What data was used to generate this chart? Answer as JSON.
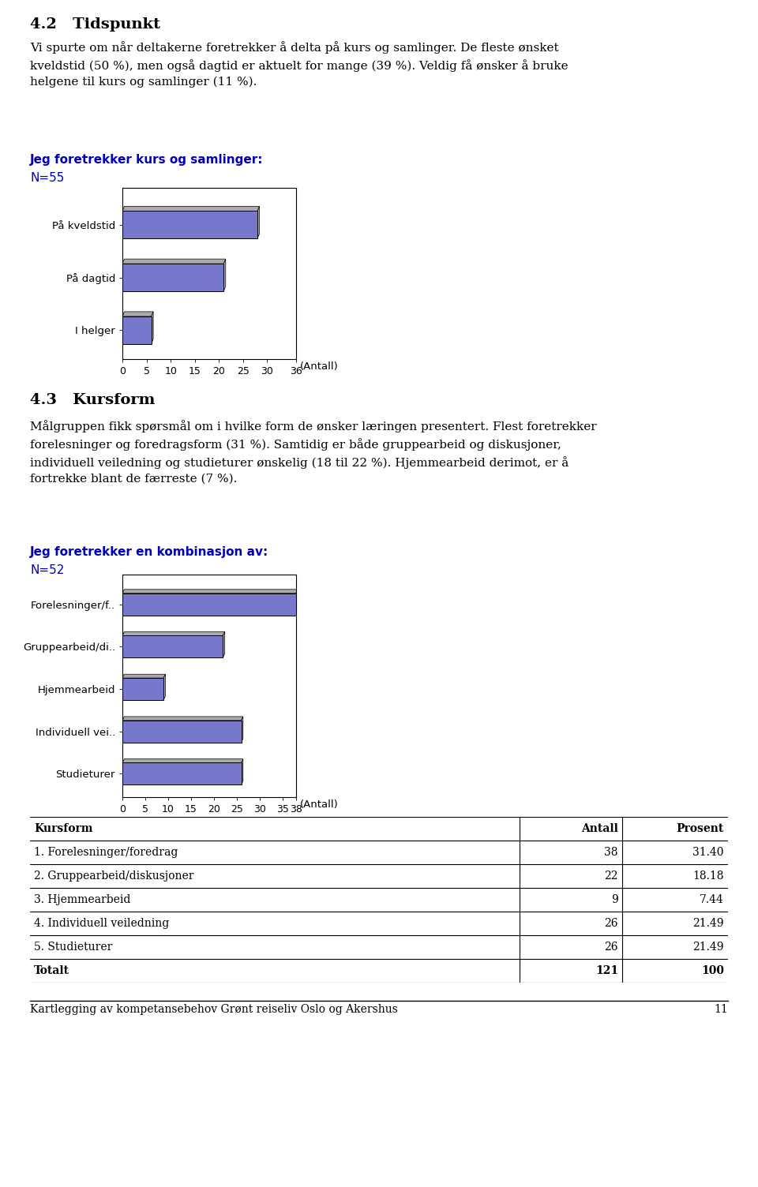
{
  "page_title_1": "4.2   Tidspunkt",
  "page_text_1": "Vi spurte om når deltakerne foretrekker å delta på kurs og samlinger. De fleste ønsket\nkveldstid (50 %), men også dagtid er aktuelt for mange (39 %). Veldig få ønsker å bruke\nhelgene til kurs og samlinger (11 %).",
  "chart1_title": "Jeg foretrekker kurs og samlinger:",
  "chart1_n": "N=55",
  "chart1_categories": [
    "På kveldstid",
    "På dagtid",
    "I helger"
  ],
  "chart1_values": [
    28,
    21,
    6
  ],
  "chart1_xlim": [
    0,
    36
  ],
  "chart1_xticks": [
    0,
    5,
    10,
    15,
    20,
    25,
    30,
    36
  ],
  "chart1_xlabel": "(Antall)",
  "section_title": "4.3   Kursform",
  "section_text": "Målgruppen fikk spørsmål om i hvilke form de ønsker læringen presentert. Flest foretrekker\nforelesninger og foredragsform (31 %). Samtidig er både gruppearbeid og diskusjoner,\nindividuell veiledning og studieturer ønskelig (18 til 22 %). Hjemmearbeid derimot, er å\nfortrekke blant de færreste (7 %).",
  "chart2_title": "Jeg foretrekker en kombinasjon av:",
  "chart2_n": "N=52",
  "chart2_categories": [
    "Forelesninger/f..",
    "Gruppearbeid/di..",
    "Hjemmearbeid",
    "Individuell vei..",
    "Studieturer"
  ],
  "chart2_values": [
    38,
    22,
    9,
    26,
    26
  ],
  "chart2_xlim": [
    0,
    38
  ],
  "chart2_xticks": [
    0,
    5,
    10,
    15,
    20,
    25,
    30,
    35,
    38
  ],
  "chart2_xlabel": "(Antall)",
  "table_headers": [
    "Kursform",
    "Antall",
    "Prosent"
  ],
  "table_rows": [
    [
      "1. Forelesninger/foredrag",
      "38",
      "31.40"
    ],
    [
      "2. Gruppearbeid/diskusjoner",
      "22",
      "18.18"
    ],
    [
      "3. Hjemmearbeid",
      "9",
      "7.44"
    ],
    [
      "4. Individuell veiledning",
      "26",
      "21.49"
    ],
    [
      "5. Studieturer",
      "26",
      "21.49"
    ],
    [
      "Totalt",
      "121",
      "100"
    ]
  ],
  "footer_text": "Kartlegging av kompetansebehov Grønt reiseliv Oslo og Akershus",
  "footer_page": "11",
  "bar_face_color": "#7777cc",
  "bar_edge_color": "#000000",
  "bar_shadow_color": "#aaaaaa",
  "title_color": "#0000bb",
  "n_color": "#0000bb",
  "background_color": "#ffffff",
  "chart_bg_color": "#ffffff",
  "text_color": "#000000"
}
